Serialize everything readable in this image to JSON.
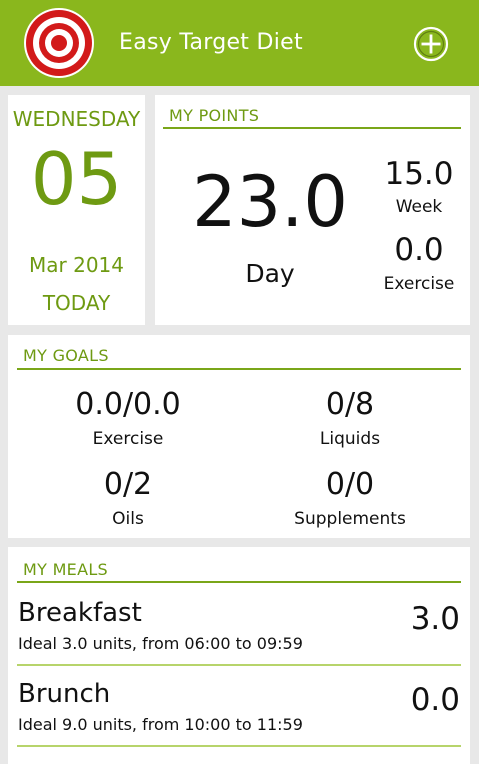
{
  "app": {
    "title": "Easy Target Diet"
  },
  "icons": {
    "logo": "target-logo",
    "add": "plus-circle-icon"
  },
  "colors": {
    "brand": "#8ab71d",
    "accent_text": "#6e9a12"
  },
  "date": {
    "weekday": "WEDNESDAY",
    "day": "05",
    "month_year": "Mar 2014",
    "today_label": "TODAY"
  },
  "points": {
    "header": "MY POINTS",
    "day_value": "23.0",
    "day_label": "Day",
    "week_value": "15.0",
    "week_label": "Week",
    "exercise_value": "0.0",
    "exercise_label": "Exercise"
  },
  "goals": {
    "header": "MY GOALS",
    "items": [
      {
        "value": "0.0/0.0",
        "label": "Exercise"
      },
      {
        "value": "0/8",
        "label": "Liquids"
      },
      {
        "value": "0/2",
        "label": "Oils"
      },
      {
        "value": "0/0",
        "label": "Supplements"
      }
    ]
  },
  "meals": {
    "header": "MY MEALS",
    "items": [
      {
        "name": "Breakfast",
        "desc": "Ideal 3.0 units, from 06:00 to 09:59",
        "points": "3.0"
      },
      {
        "name": "Brunch",
        "desc": "Ideal 9.0 units, from 10:00 to 11:59",
        "points": "0.0"
      }
    ]
  }
}
